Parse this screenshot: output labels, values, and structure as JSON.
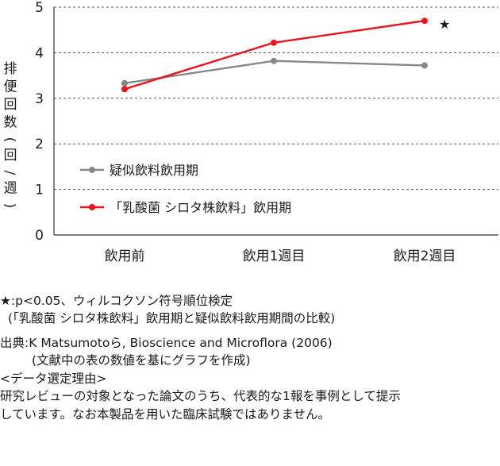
{
  "chart_data": {
    "type": "line",
    "categories": [
      "飲用前",
      "飲用1週目",
      "飲用2週目"
    ],
    "series": [
      {
        "name": "疑似飲料飲用期",
        "values": [
          3.33,
          3.82,
          3.72
        ],
        "color": "#888888"
      },
      {
        "name": "「乳酸菌 シロタ株飲料」飲用期",
        "values": [
          3.2,
          4.22,
          4.7
        ],
        "color": "#e8151b"
      }
    ],
    "ylabel": "排便回数(回/週)",
    "ylim": [
      0,
      5
    ],
    "yticks": [
      "0",
      "1",
      "2",
      "3",
      "4",
      "5"
    ],
    "grid": "horizontal-dashed",
    "legend": "lower-left inside",
    "annotation": {
      "text": "★",
      "category": "飲用2週目",
      "series": "「乳酸菌 シロタ株飲料」飲用期"
    }
  },
  "notes": {
    "significance_line1": "★:p<0.05、ウィルコクソン符号順位検定",
    "significance_line2": "(「乳酸菌 シロタ株飲料」飲用期と疑似飲料飲用期間の比較)",
    "source_line1": "出典:K Matsumotoら, Bioscience and Microflora (2006)",
    "source_line2": "(文献中の表の数値を基にグラフを作成)",
    "reason_heading": "<データ選定理由>",
    "reason_line1": "研究レビューの対象となった論文のうち、代表的な1報を事例として提示",
    "reason_line2": "しています。なお本製品を用いた臨床試験ではありません。"
  }
}
